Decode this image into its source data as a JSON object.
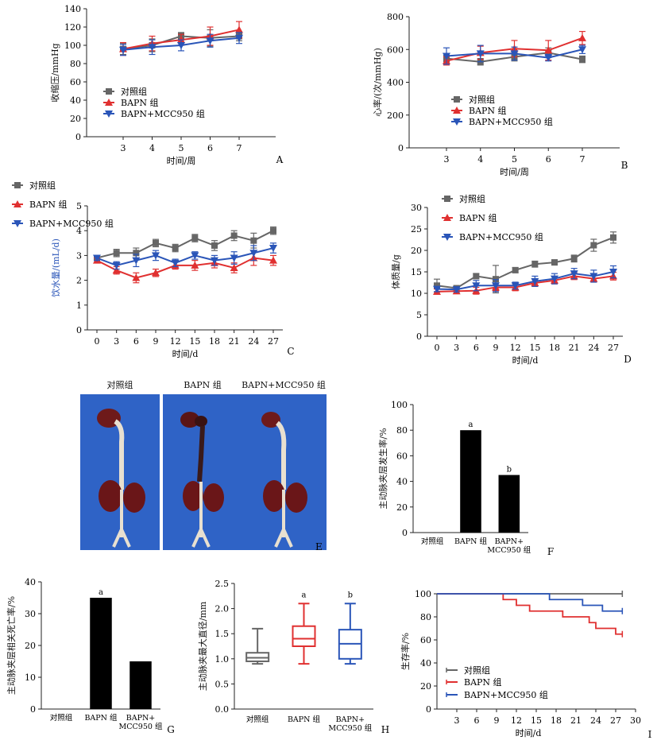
{
  "legend_labels": {
    "control": "对照组",
    "bapn": "BAPN 组",
    "mcc": "BAPN+MCC950 组"
  },
  "colors": {
    "control": "#666666",
    "bapn": "#e03030",
    "mcc": "#2a55b8",
    "bar": "#000000"
  },
  "chart_data": [
    {
      "panel": "A",
      "type": "line",
      "ylabel": "收缩压/mmHg",
      "xlabel": "时间/周",
      "x": [
        3,
        4,
        5,
        6,
        7
      ],
      "ylim": [
        0,
        140
      ],
      "yticks": [
        0,
        20,
        40,
        60,
        80,
        100,
        120,
        140
      ],
      "grid": false,
      "series": [
        {
          "name": "对照组",
          "key": "control",
          "marker": "square",
          "values": [
            96,
            100,
            110,
            108,
            110
          ],
          "err": [
            6,
            7,
            4,
            9,
            5
          ]
        },
        {
          "name": "BAPN 组",
          "key": "bapn",
          "marker": "triangle",
          "values": [
            96,
            102,
            106,
            110,
            117
          ],
          "err": [
            7,
            8,
            6,
            10,
            9
          ]
        },
        {
          "name": "BAPN+MCC950 组",
          "key": "mcc",
          "marker": "triangle-down",
          "values": [
            95,
            98,
            100,
            105,
            108
          ],
          "err": [
            6,
            8,
            6,
            7,
            6
          ]
        }
      ]
    },
    {
      "panel": "B",
      "type": "line",
      "ylabel": "心率/(次/mmHg)",
      "xlabel": "时间/周",
      "x": [
        3,
        4,
        5,
        6,
        7
      ],
      "ylim": [
        0,
        800
      ],
      "yticks": [
        0,
        200,
        400,
        600,
        800
      ],
      "grid": false,
      "series": [
        {
          "name": "对照组",
          "key": "control",
          "marker": "square",
          "values": [
            545,
            525,
            555,
            580,
            540
          ],
          "err": [
            20,
            20,
            25,
            30,
            20
          ]
        },
        {
          "name": "BAPN 组",
          "key": "bapn",
          "marker": "triangle",
          "values": [
            530,
            580,
            605,
            595,
            670
          ],
          "err": [
            25,
            40,
            50,
            60,
            40
          ]
        },
        {
          "name": "BAPN+MCC950 组",
          "key": "mcc",
          "marker": "triangle-down",
          "values": [
            560,
            575,
            575,
            550,
            600
          ],
          "err": [
            50,
            50,
            40,
            20,
            25
          ]
        }
      ]
    },
    {
      "panel": "C",
      "type": "line",
      "ylabel": "饮水量/(mL/d)",
      "xlabel": "时间/d",
      "x": [
        0,
        3,
        6,
        9,
        12,
        15,
        18,
        21,
        24,
        27
      ],
      "ylim": [
        0,
        5
      ],
      "yticks": [
        0,
        1,
        2,
        3,
        4,
        5
      ],
      "grid": false,
      "series": [
        {
          "name": "对照组",
          "key": "control",
          "marker": "square",
          "values": [
            2.9,
            3.1,
            3.1,
            3.5,
            3.3,
            3.7,
            3.4,
            3.8,
            3.6,
            4.0
          ],
          "err": [
            0.1,
            0.15,
            0.2,
            0.15,
            0.15,
            0.15,
            0.2,
            0.2,
            0.3,
            0.15
          ]
        },
        {
          "name": "BAPN 组",
          "key": "bapn",
          "marker": "triangle",
          "values": [
            2.8,
            2.4,
            2.1,
            2.3,
            2.6,
            2.6,
            2.7,
            2.5,
            2.9,
            2.8
          ],
          "err": [
            0.1,
            0.15,
            0.2,
            0.15,
            0.15,
            0.2,
            0.2,
            0.2,
            0.3,
            0.2
          ]
        },
        {
          "name": "BAPN+MCC950 组",
          "key": "mcc",
          "marker": "triangle-down",
          "values": [
            2.9,
            2.6,
            2.8,
            3.0,
            2.7,
            3.0,
            2.8,
            2.9,
            3.1,
            3.3
          ],
          "err": [
            0.1,
            0.15,
            0.25,
            0.2,
            0.15,
            0.15,
            0.2,
            0.25,
            0.3,
            0.2
          ]
        }
      ]
    },
    {
      "panel": "D",
      "type": "line",
      "ylabel": "体质量/g",
      "xlabel": "时间/d",
      "x": [
        0,
        3,
        6,
        9,
        12,
        15,
        18,
        21,
        24,
        27
      ],
      "ylim": [
        0,
        30
      ],
      "yticks": [
        0,
        5,
        10,
        15,
        20,
        25,
        30
      ],
      "grid": false,
      "series": [
        {
          "name": "对照组",
          "key": "control",
          "marker": "square",
          "values": [
            11.8,
            11.2,
            14.0,
            13.3,
            15.4,
            16.8,
            17.2,
            18.1,
            21.2,
            23.0
          ],
          "err": [
            1.5,
            0.6,
            0.6,
            3.2,
            0.6,
            0.7,
            0.6,
            0.8,
            1.4,
            1.3
          ]
        },
        {
          "name": "BAPN 组",
          "key": "bapn",
          "marker": "triangle",
          "values": [
            10.4,
            10.5,
            10.6,
            11.4,
            11.4,
            12.4,
            13.0,
            14.0,
            13.4,
            14.0
          ],
          "err": [
            0.6,
            0.6,
            0.8,
            0.8,
            0.8,
            0.8,
            0.8,
            0.8,
            0.8,
            0.9
          ]
        },
        {
          "name": "BAPN+MCC950 组",
          "key": "mcc",
          "marker": "triangle-down",
          "values": [
            11.0,
            10.9,
            11.8,
            11.8,
            11.8,
            12.8,
            13.4,
            14.6,
            14.0,
            15.0
          ],
          "err": [
            0.6,
            0.6,
            1.2,
            1.4,
            0.8,
            1.2,
            1.2,
            1.2,
            1.4,
            1.4
          ]
        }
      ]
    },
    {
      "panel": "F",
      "type": "bar",
      "ylabel": "主动脉夹层发生率/%",
      "categories": [
        "对照组",
        "BAPN 组",
        "BAPN+\nMCC950 组"
      ],
      "values": [
        0,
        80,
        45
      ],
      "annotations": [
        "",
        "a",
        "b"
      ],
      "ylim": [
        0,
        100
      ],
      "yticks": [
        0,
        20,
        40,
        60,
        80,
        100
      ],
      "grid": false
    },
    {
      "panel": "G",
      "type": "bar",
      "ylabel": "主动脉夹层相关死亡率/%",
      "categories": [
        "对照组",
        "BAPN 组",
        "BAPN+\nMCC950 组"
      ],
      "values": [
        0,
        35,
        15
      ],
      "annotations": [
        "",
        "a",
        ""
      ],
      "ylim": [
        0,
        40
      ],
      "yticks": [
        0,
        10,
        20,
        30,
        40
      ],
      "grid": false
    },
    {
      "panel": "H",
      "type": "boxplot",
      "ylabel": "主动脉夹最大直径/mm",
      "categories": [
        "对照组",
        "BAPN 组",
        "BAPN+\nMCC950 组"
      ],
      "annotations": [
        "",
        "a",
        "b"
      ],
      "ylim": [
        0,
        2.5
      ],
      "yticks": [
        0.0,
        0.5,
        1.0,
        1.5,
        2.0,
        2.5
      ],
      "grid": false,
      "boxes": [
        {
          "key": "control",
          "min": 0.9,
          "q1": 0.95,
          "median": 1.02,
          "q3": 1.12,
          "max": 1.6
        },
        {
          "key": "bapn",
          "min": 0.9,
          "q1": 1.25,
          "median": 1.4,
          "q3": 1.65,
          "max": 2.1
        },
        {
          "key": "mcc",
          "min": 0.9,
          "q1": 1.0,
          "median": 1.3,
          "q3": 1.58,
          "max": 2.1
        }
      ]
    },
    {
      "panel": "I",
      "type": "line",
      "ylabel": "生存率/%",
      "xlabel": "时间/d",
      "xlim": [
        0,
        30
      ],
      "xticks": [
        3,
        6,
        9,
        12,
        15,
        18,
        21,
        24,
        27,
        30
      ],
      "ylim": [
        0,
        100
      ],
      "yticks": [
        0,
        20,
        40,
        60,
        80,
        100
      ],
      "grid": false,
      "series": [
        {
          "name": "对照组",
          "key": "control",
          "marker": "none",
          "step_x": [
            0,
            28
          ],
          "step_y": [
            100,
            100
          ]
        },
        {
          "name": "BAPN 组",
          "key": "bapn",
          "marker": "none",
          "step_x": [
            10,
            12,
            14,
            19,
            23,
            24,
            25,
            27,
            28
          ],
          "step_y": [
            95,
            90,
            85,
            80,
            75,
            70,
            70,
            65,
            65
          ]
        },
        {
          "name": "BAPN+MCC950 组",
          "key": "mcc",
          "marker": "none",
          "step_x": [
            17,
            22,
            25,
            28
          ],
          "step_y": [
            95,
            90,
            85,
            85
          ]
        }
      ]
    }
  ],
  "panel_letters": {
    "A": "A",
    "B": "B",
    "C": "C",
    "D": "D",
    "E": "E",
    "F": "F",
    "G": "G",
    "H": "H",
    "I": "I"
  },
  "photos": {
    "titles": [
      "对照组",
      "BAPN 组",
      "BAPN+MCC950 组"
    ]
  }
}
